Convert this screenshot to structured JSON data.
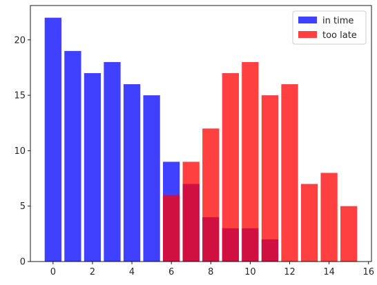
{
  "chart_data": {
    "type": "bar",
    "title": "",
    "xlabel": "",
    "ylabel": "",
    "xlim": [
      -1.15,
      16.15
    ],
    "ylim": [
      0,
      23.1
    ],
    "grid": false,
    "legend_position": "top-right",
    "bar_width": 0.85,
    "alpha": 0.75,
    "x_ticks": [
      0,
      2,
      4,
      6,
      8,
      10,
      12,
      14,
      16
    ],
    "y_ticks": [
      0,
      5,
      10,
      15,
      20
    ],
    "series": [
      {
        "name": "in time",
        "color": "#0000ff",
        "x": [
          0,
          1,
          2,
          3,
          4,
          5,
          6,
          7,
          8,
          9,
          10,
          11
        ],
        "values": [
          22,
          19,
          17,
          18,
          16,
          15,
          9,
          7,
          4,
          3,
          3,
          2
        ]
      },
      {
        "name": "too late",
        "color": "#ff0000",
        "x": [
          6,
          7,
          8,
          9,
          10,
          11,
          12,
          13,
          14,
          15
        ],
        "values": [
          6,
          9,
          12,
          17,
          18,
          15,
          16,
          7,
          8,
          5
        ]
      }
    ]
  }
}
